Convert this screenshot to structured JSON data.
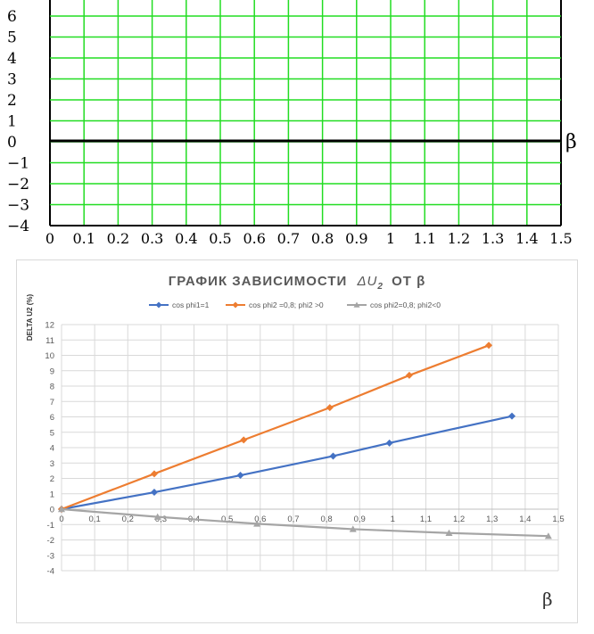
{
  "chart_data": [
    {
      "type": "line",
      "title": "",
      "xlabel": "β",
      "ylabel": "",
      "xlim": [
        0,
        1.5
      ],
      "ylim": [
        -4,
        6
      ],
      "x_ticks": [
        "0",
        "0.1",
        "0.2",
        "0.3",
        "0.4",
        "0.5",
        "0.6",
        "0.7",
        "0.8",
        "0.9",
        "1",
        "1.1",
        "1.2",
        "1.3",
        "1.4",
        "1.5"
      ],
      "y_ticks": [
        "6",
        "5",
        "4",
        "3",
        "2",
        "1",
        "0",
        "−1",
        "−2",
        "−3",
        "−4"
      ],
      "grid": true,
      "grid_color": "#22dd22",
      "series": []
    },
    {
      "type": "line",
      "title_prefix": "ГРАФИК ЗАВИСИМОСТИ",
      "title_symbol": "ΔU",
      "title_sub": "2",
      "title_suffix": "ОТ β",
      "xlabel": "β",
      "ylabel": "DELTA U2 (%)",
      "xlim": [
        0,
        1.5
      ],
      "ylim": [
        -4,
        12
      ],
      "x_ticks": [
        "0",
        "0,1",
        "0,2",
        "0,3",
        "0,4",
        "0,5",
        "0,6",
        "0,7",
        "0,8",
        "0,9",
        "1",
        "1,1",
        "1,2",
        "1,3",
        "1,4",
        "1,5"
      ],
      "y_ticks": [
        "12",
        "11",
        "10",
        "9",
        "8",
        "7",
        "6",
        "5",
        "4",
        "3",
        "2",
        "1",
        "0",
        "-1",
        "-2",
        "-3",
        "-4"
      ],
      "grid": true,
      "legend_position": "top",
      "series": [
        {
          "name": "cos phi1=1",
          "color": "#4472c4",
          "marker": "diamond",
          "x": [
            0,
            0.28,
            0.54,
            0.82,
            0.99,
            1.36
          ],
          "y": [
            0,
            1.1,
            2.2,
            3.45,
            4.3,
            6.05
          ]
        },
        {
          "name": "cos phi2 =0,8; phi2 >0",
          "color": "#ed7d31",
          "marker": "diamond",
          "x": [
            0,
            0.28,
            0.55,
            0.81,
            1.05,
            1.29
          ],
          "y": [
            0,
            2.3,
            4.5,
            6.6,
            8.7,
            10.65
          ]
        },
        {
          "name": "cos phi2=0,8; phi2<0",
          "color": "#a5a5a5",
          "marker": "triangle",
          "x": [
            0,
            0.29,
            0.59,
            0.88,
            1.17,
            1.47
          ],
          "y": [
            0,
            -0.5,
            -0.95,
            -1.3,
            -1.55,
            -1.75
          ]
        }
      ]
    }
  ]
}
